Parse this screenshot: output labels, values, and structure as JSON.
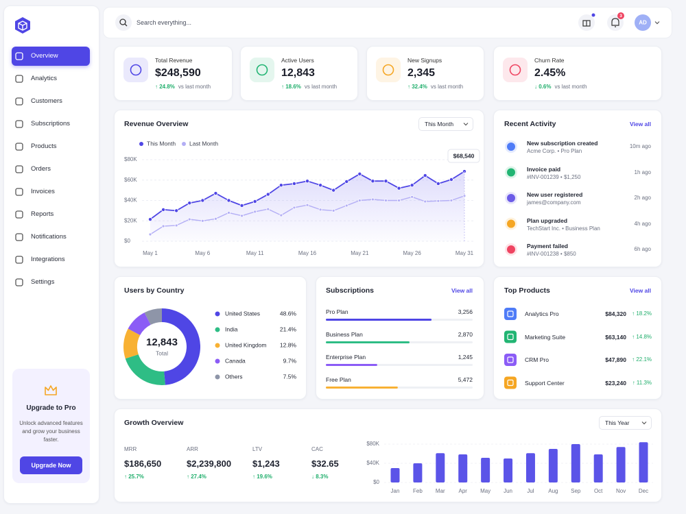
{
  "sidebar": {
    "nav": [
      "Overview",
      "Analytics",
      "Customers",
      "Subscriptions",
      "Products",
      "Orders",
      "Invoices",
      "Reports",
      "Notifications",
      "Integrations",
      "Settings"
    ],
    "upgrade": {
      "title": "Upgrade to Pro",
      "text": "Unlock advanced features and grow your business faster.",
      "button": "Upgrade Now"
    }
  },
  "topbar": {
    "search": "Search everything...",
    "notifications": 3,
    "avatar": "AD"
  },
  "kpis": [
    {
      "label": "Total Revenue",
      "value": "$248,590",
      "change": "↑ 24.8%",
      "note": "vs last month",
      "color": "#4f46e5"
    },
    {
      "label": "Active Users",
      "value": "12,843",
      "change": "↑ 18.6%",
      "note": "vs last month",
      "color": "#22b573"
    },
    {
      "label": "New Signups",
      "value": "2,345",
      "change": "↑ 32.4%",
      "note": "vs last month",
      "color": "#f5a623"
    },
    {
      "label": "Churn Rate",
      "value": "2.45%",
      "change": "↓ 0.6%",
      "note": "vs last month",
      "color": "#ef4461"
    }
  ],
  "revenue": {
    "title": "Revenue Overview",
    "filter": "This Month",
    "chart": {
      "type": "line",
      "categories": [
        "May 1",
        null,
        null,
        null,
        "May 6",
        null,
        null,
        null,
        "May 11",
        null,
        null,
        null,
        "May 16",
        null,
        null,
        null,
        "May 21",
        null,
        null,
        null,
        "May 26",
        null,
        null,
        null,
        "May 31"
      ],
      "series": [
        {
          "name": "This Month",
          "color": "#4f46e5",
          "values": [
            21500,
            31000,
            30000,
            37500,
            40000,
            47000,
            40000,
            35000,
            39000,
            46000,
            55000,
            56500,
            59000,
            55000,
            50000,
            58500,
            66000,
            59000,
            59000,
            52000,
            55000,
            64500,
            56500,
            60500,
            68540
          ],
          "value_labels": [
            null,
            null,
            null,
            null,
            null,
            null,
            null,
            null,
            null,
            null,
            null,
            null,
            null,
            null,
            null,
            null,
            null,
            null,
            null,
            null,
            null,
            null,
            null,
            null,
            "$68,540"
          ]
        },
        {
          "name": "Last Month",
          "color": "#b3aef5",
          "values": [
            6700,
            14800,
            15500,
            21500,
            20000,
            22000,
            28000,
            25000,
            29000,
            31500,
            25500,
            33000,
            35500,
            31000,
            30000,
            35000,
            40000,
            41000,
            40000,
            40000,
            43500,
            39000,
            39500,
            40000,
            44500
          ]
        }
      ],
      "ylim": [
        0,
        80000
      ],
      "yticks": [
        {
          "value": 0,
          "label": "$0"
        },
        {
          "value": 20000,
          "label": "$20K"
        },
        {
          "value": 40000,
          "label": "$40K"
        },
        {
          "value": 60000,
          "label": "$60K"
        },
        {
          "value": 80000,
          "label": "$80K"
        }
      ],
      "grid": true
    }
  },
  "activity": {
    "title": "Recent Activity",
    "link": "View all",
    "items": [
      {
        "title": "New subscription created",
        "detail": "Acme Corp. • Pro Plan",
        "time": "10m ago",
        "color": "#4f7cf7"
      },
      {
        "title": "Invoice paid",
        "detail": "#INV-001239 • $1,250",
        "time": "1h ago",
        "color": "#22b573"
      },
      {
        "title": "New user registered",
        "detail": "james@company.com",
        "time": "2h ago",
        "color": "#6c5ce7"
      },
      {
        "title": "Plan upgraded",
        "detail": "TechStart Inc. • Business Plan",
        "time": "4h ago",
        "color": "#f5a623"
      },
      {
        "title": "Payment failed",
        "detail": "#INV-001238 • $850",
        "time": "6h ago",
        "color": "#ef4461"
      }
    ]
  },
  "countries": {
    "title": "Users by Country",
    "total": "12,843",
    "total_label": "Total",
    "chart": {
      "type": "pie",
      "categories": [
        "United States",
        "India",
        "United Kingdom",
        "Canada",
        "Others"
      ],
      "values": [
        48.6,
        21.4,
        12.8,
        9.7,
        7.5
      ],
      "value_labels": [
        "48.6%",
        "21.4%",
        "12.8%",
        "9.7%",
        "7.5%"
      ],
      "colors": [
        "#4f46e5",
        "#2ebd85",
        "#f8b133",
        "#8b5cf6",
        "#8e95a8"
      ]
    }
  },
  "subscriptions": {
    "title": "Subscriptions",
    "link": "View all",
    "plans": [
      {
        "name": "Pro Plan",
        "count": "3,256",
        "progress": 72,
        "color": "#4f46e5"
      },
      {
        "name": "Business Plan",
        "count": "2,870",
        "progress": 57,
        "color": "#2ebd85"
      },
      {
        "name": "Enterprise Plan",
        "count": "1,245",
        "progress": 35,
        "color": "#8b5cf6"
      },
      {
        "name": "Free Plan",
        "count": "5,472",
        "progress": 49,
        "color": "#f8b133"
      }
    ]
  },
  "products": {
    "title": "Top Products",
    "link": "View all",
    "items": [
      {
        "name": "Analytics Pro",
        "revenue": "$84,320",
        "change": "↑ 18.2%",
        "color": "#4f7cf7"
      },
      {
        "name": "Marketing Suite",
        "revenue": "$63,140",
        "change": "↑ 14.8%",
        "color": "#22b573"
      },
      {
        "name": "CRM Pro",
        "revenue": "$47,890",
        "change": "↑ 22.1%",
        "color": "#8b5cf6"
      },
      {
        "name": "Support Center",
        "revenue": "$23,240",
        "change": "↑ 11.3%",
        "color": "#f5a623"
      }
    ]
  },
  "growth": {
    "title": "Growth Overview",
    "filter": "This Year",
    "metrics": [
      {
        "label": "MRR",
        "value": "$186,650",
        "change": "↑ 25.7%"
      },
      {
        "label": "ARR",
        "value": "$2,239,800",
        "change": "↑ 27.4%"
      },
      {
        "label": "LTV",
        "value": "$1,243",
        "change": "↑ 19.6%"
      },
      {
        "label": "CAC",
        "value": "$32.65",
        "change": "↓ 8.3%"
      }
    ],
    "chart": {
      "type": "bar",
      "categories": [
        "Jan",
        "Feb",
        "Mar",
        "Apr",
        "May",
        "Jun",
        "Jul",
        "Aug",
        "Sep",
        "Oct",
        "Nov",
        "Dec"
      ],
      "values": [
        30000,
        40000,
        61000,
        58500,
        51500,
        50000,
        61000,
        70000,
        80000,
        58500,
        74000,
        84000
      ],
      "color": "#5b54e8",
      "ylim": [
        0,
        90000
      ],
      "yticks": [
        {
          "value": 0,
          "label": "$0"
        },
        {
          "value": 40000,
          "label": "$40K"
        },
        {
          "value": 80000,
          "label": "$80K"
        }
      ],
      "grid": true
    }
  }
}
